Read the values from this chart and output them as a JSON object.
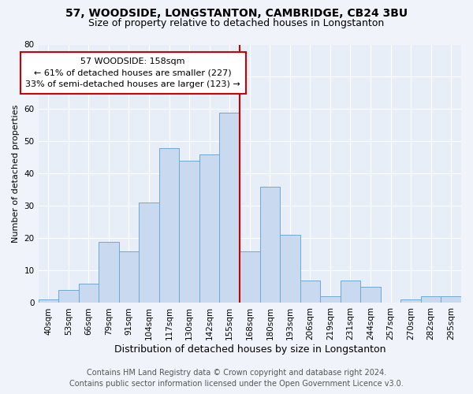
{
  "title": "57, WOODSIDE, LONGSTANTON, CAMBRIDGE, CB24 3BU",
  "subtitle": "Size of property relative to detached houses in Longstanton",
  "xlabel": "Distribution of detached houses by size in Longstanton",
  "ylabel": "Number of detached properties",
  "bar_labels": [
    "40sqm",
    "53sqm",
    "66sqm",
    "79sqm",
    "91sqm",
    "104sqm",
    "117sqm",
    "130sqm",
    "142sqm",
    "155sqm",
    "168sqm",
    "180sqm",
    "193sqm",
    "206sqm",
    "219sqm",
    "231sqm",
    "244sqm",
    "257sqm",
    "270sqm",
    "282sqm",
    "295sqm"
  ],
  "bar_heights": [
    1,
    4,
    6,
    19,
    16,
    31,
    48,
    44,
    46,
    59,
    16,
    36,
    21,
    7,
    2,
    7,
    5,
    0,
    1,
    2,
    2
  ],
  "bar_color": "#c9d9f0",
  "bar_edge_color": "#6fa8d4",
  "ylim": [
    0,
    80
  ],
  "yticks": [
    0,
    10,
    20,
    30,
    40,
    50,
    60,
    70,
    80
  ],
  "vline_x": 9.5,
  "vline_color": "#cc0000",
  "annotation_title": "57 WOODSIDE: 158sqm",
  "annotation_line1": "← 61% of detached houses are smaller (227)",
  "annotation_line2": "33% of semi-detached houses are larger (123) →",
  "annotation_box_color": "#cc0000",
  "footer_line1": "Contains HM Land Registry data © Crown copyright and database right 2024.",
  "footer_line2": "Contains public sector information licensed under the Open Government Licence v3.0.",
  "bg_color": "#f0f4fa",
  "plot_bg_color": "#e8eef8",
  "grid_color": "#ffffff",
  "title_fontsize": 10,
  "subtitle_fontsize": 9,
  "xlabel_fontsize": 9,
  "ylabel_fontsize": 8,
  "tick_fontsize": 7.5,
  "footer_fontsize": 7
}
